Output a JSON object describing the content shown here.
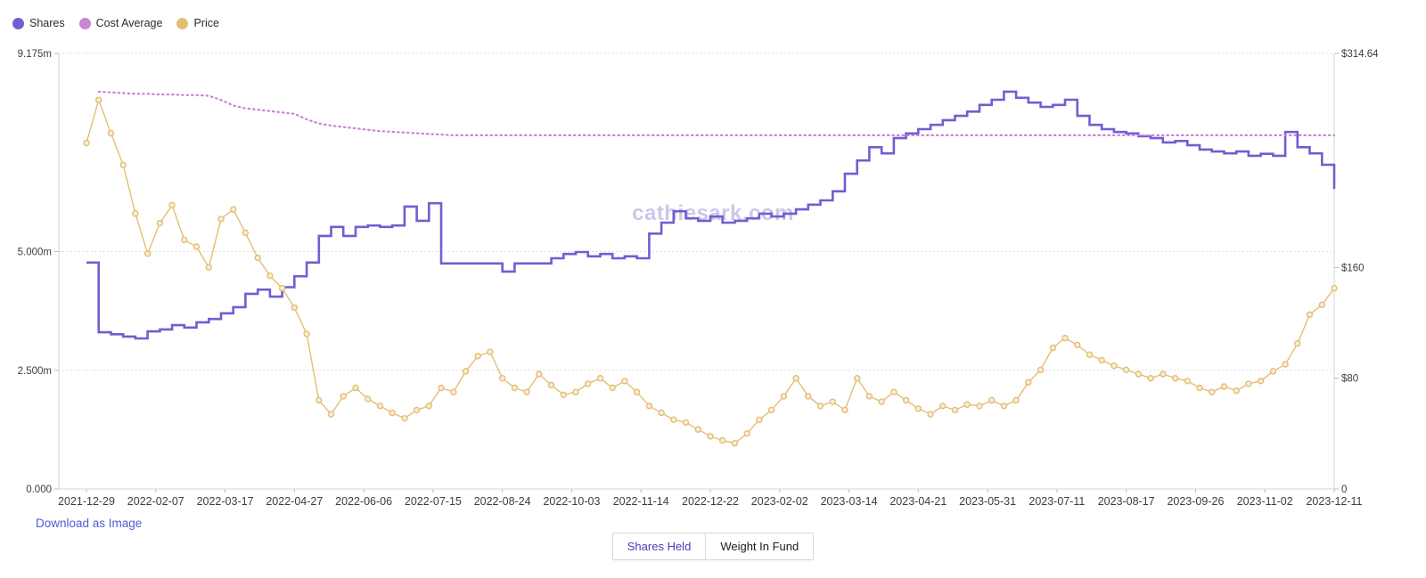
{
  "page": {
    "watermark": "cathiesark.com",
    "download_link": "Download as Image",
    "background": "#ffffff"
  },
  "legend": {
    "items": [
      {
        "label": "Shares",
        "color": "#6f5fd1"
      },
      {
        "label": "Cost Average",
        "color": "#cc82d6"
      },
      {
        "label": "Price",
        "color": "#e3be75"
      }
    ]
  },
  "view_toggle": {
    "options": [
      {
        "label": "Shares Held",
        "active": true
      },
      {
        "label": "Weight In Fund",
        "active": false
      }
    ]
  },
  "chart_data": {
    "type": "line",
    "title": "",
    "legend_position": "top-left",
    "grid": "horizontal-dotted",
    "x_tick_labels": [
      "2021-12-29",
      "2022-02-07",
      "2022-03-17",
      "2022-04-27",
      "2022-06-06",
      "2022-07-15",
      "2022-08-24",
      "2022-10-03",
      "2022-11-14",
      "2022-12-22",
      "2023-02-02",
      "2023-03-14",
      "2023-04-21",
      "2023-05-31",
      "2023-07-11",
      "2023-08-17",
      "2023-09-26",
      "2023-11-02",
      "2023-12-11"
    ],
    "axes": {
      "left": {
        "range": [
          0,
          9.175
        ],
        "unit": "millions of shares",
        "ticks": [
          {
            "value": 9.175,
            "label": "9.175m"
          },
          {
            "value": 5.0,
            "label": "5.000m"
          },
          {
            "value": 2.5,
            "label": "2.500m"
          },
          {
            "value": 0,
            "label": "0.000"
          }
        ]
      },
      "right": {
        "range": [
          0,
          314.64
        ],
        "unit": "USD",
        "ticks": [
          {
            "value": 314.64,
            "label": "$314.64"
          },
          {
            "value": 160,
            "label": "$160"
          },
          {
            "value": 80,
            "label": "$80"
          },
          {
            "value": 0,
            "label": "0"
          }
        ]
      }
    },
    "x": [
      "2021-12-29",
      "2022-01-05",
      "2022-01-12",
      "2022-01-19",
      "2022-01-26",
      "2022-02-02",
      "2022-02-09",
      "2022-02-16",
      "2022-02-23",
      "2022-03-02",
      "2022-03-09",
      "2022-03-16",
      "2022-03-23",
      "2022-03-30",
      "2022-04-06",
      "2022-04-13",
      "2022-04-20",
      "2022-04-27",
      "2022-05-04",
      "2022-05-11",
      "2022-05-18",
      "2022-05-25",
      "2022-06-01",
      "2022-06-08",
      "2022-06-15",
      "2022-06-22",
      "2022-06-29",
      "2022-07-06",
      "2022-07-13",
      "2022-07-20",
      "2022-07-27",
      "2022-08-03",
      "2022-08-10",
      "2022-08-17",
      "2022-08-24",
      "2022-08-31",
      "2022-09-07",
      "2022-09-14",
      "2022-09-21",
      "2022-09-28",
      "2022-10-05",
      "2022-10-12",
      "2022-10-19",
      "2022-10-26",
      "2022-11-02",
      "2022-11-09",
      "2022-11-16",
      "2022-11-23",
      "2022-11-30",
      "2022-12-07",
      "2022-12-14",
      "2022-12-21",
      "2022-12-28",
      "2023-01-04",
      "2023-01-11",
      "2023-01-18",
      "2023-01-25",
      "2023-02-01",
      "2023-02-08",
      "2023-02-15",
      "2023-02-22",
      "2023-03-01",
      "2023-03-08",
      "2023-03-15",
      "2023-03-22",
      "2023-03-29",
      "2023-04-05",
      "2023-04-12",
      "2023-04-19",
      "2023-04-26",
      "2023-05-03",
      "2023-05-10",
      "2023-05-17",
      "2023-05-24",
      "2023-05-31",
      "2023-06-07",
      "2023-06-14",
      "2023-06-21",
      "2023-06-28",
      "2023-07-05",
      "2023-07-12",
      "2023-07-19",
      "2023-07-26",
      "2023-08-02",
      "2023-08-09",
      "2023-08-16",
      "2023-08-23",
      "2023-08-30",
      "2023-09-06",
      "2023-09-13",
      "2023-09-20",
      "2023-09-27",
      "2023-10-04",
      "2023-10-11",
      "2023-10-18",
      "2023-10-25",
      "2023-11-01",
      "2023-11-08",
      "2023-11-15",
      "2023-11-22",
      "2023-11-29",
      "2023-12-06",
      "2023-12-11"
    ],
    "series": [
      {
        "name": "Shares",
        "axis": "left",
        "style": "step",
        "color": "#6f5fd1",
        "unit": "millions",
        "values": [
          4.77,
          3.3,
          3.26,
          3.21,
          3.17,
          3.32,
          3.36,
          3.45,
          3.4,
          3.51,
          3.58,
          3.7,
          3.83,
          4.11,
          4.2,
          4.05,
          4.25,
          4.48,
          4.77,
          5.33,
          5.52,
          5.33,
          5.52,
          5.55,
          5.52,
          5.55,
          5.95,
          5.65,
          6.02,
          4.75,
          4.75,
          4.75,
          4.75,
          4.75,
          4.58,
          4.75,
          4.75,
          4.75,
          4.86,
          4.95,
          4.99,
          4.9,
          4.95,
          4.86,
          4.9,
          4.86,
          5.38,
          5.61,
          5.85,
          5.7,
          5.65,
          5.74,
          5.61,
          5.65,
          5.7,
          5.8,
          5.74,
          5.8,
          5.89,
          5.99,
          6.08,
          6.27,
          6.64,
          6.92,
          7.2,
          7.07,
          7.39,
          7.49,
          7.58,
          7.67,
          7.77,
          7.86,
          7.95,
          8.09,
          8.2,
          8.37,
          8.24,
          8.14,
          8.05,
          8.09,
          8.2,
          7.86,
          7.67,
          7.58,
          7.52,
          7.49,
          7.43,
          7.39,
          7.3,
          7.33,
          7.24,
          7.15,
          7.11,
          7.07,
          7.11,
          7.02,
          7.06,
          7.02,
          7.52,
          7.2,
          7.07,
          6.83,
          6.32
        ]
      },
      {
        "name": "Cost Average",
        "axis": "right",
        "style": "dotted",
        "color": "#cc82d6",
        "unit": "USD",
        "values": [
          null,
          287,
          286.5,
          286,
          285.5,
          285.5,
          285,
          285,
          284.5,
          284.5,
          284,
          281,
          277,
          275,
          274,
          273,
          272,
          271,
          267,
          264,
          262.5,
          261.5,
          260.5,
          259.5,
          258.5,
          258,
          257.5,
          257,
          256.5,
          256,
          255.5,
          255.5,
          255.5,
          255.5,
          255.5,
          255.5,
          255.5,
          255.5,
          255.5,
          255.5,
          255.5,
          255.5,
          255.5,
          255.5,
          255.5,
          255.5,
          255.5,
          255.5,
          255.5,
          255.5,
          255.5,
          255.5,
          255.5,
          255.5,
          255.5,
          255.5,
          255.5,
          255.5,
          255.5,
          255.5,
          255.5,
          255.5,
          255.5,
          255.5,
          255.5,
          255.5,
          255.5,
          255.5,
          255.5,
          255.5,
          255.5,
          255.5,
          255.5,
          255.5,
          255.5,
          255.5,
          255.5,
          255.5,
          255.5,
          255.5,
          255.5,
          255.5,
          255.5,
          255.5,
          255.5,
          255.5,
          255.5,
          255.5,
          255.5,
          255.5,
          255.5,
          255.5,
          255.5,
          255.5,
          255.5,
          255.5,
          255.5,
          255.5,
          255.5,
          255.5,
          255.5,
          255.5,
          255.5
        ]
      },
      {
        "name": "Price",
        "axis": "right",
        "style": "line-markers",
        "color": "#e3be75",
        "unit": "USD",
        "values": [
          250,
          281,
          257,
          234,
          199,
          170,
          192,
          205,
          180,
          175,
          160,
          195,
          202,
          185,
          167,
          154,
          145,
          131,
          112,
          64,
          54,
          67,
          73,
          65,
          60,
          55,
          51,
          57,
          60,
          73,
          70,
          85,
          96,
          99,
          80,
          73,
          70,
          83,
          75,
          68,
          70,
          76,
          80,
          73,
          78,
          70,
          60,
          55,
          50,
          48,
          43,
          38,
          35,
          33,
          40,
          50,
          57,
          67,
          80,
          67,
          60,
          63,
          57,
          80,
          67,
          63,
          70,
          64,
          58,
          54,
          60,
          57,
          61,
          60,
          64,
          60,
          64,
          77,
          86,
          102,
          109,
          104,
          97,
          93,
          89,
          86,
          83,
          80,
          83,
          80,
          78,
          73,
          70,
          74,
          71,
          76,
          78,
          85,
          90,
          105,
          126,
          133,
          145
        ]
      }
    ]
  }
}
